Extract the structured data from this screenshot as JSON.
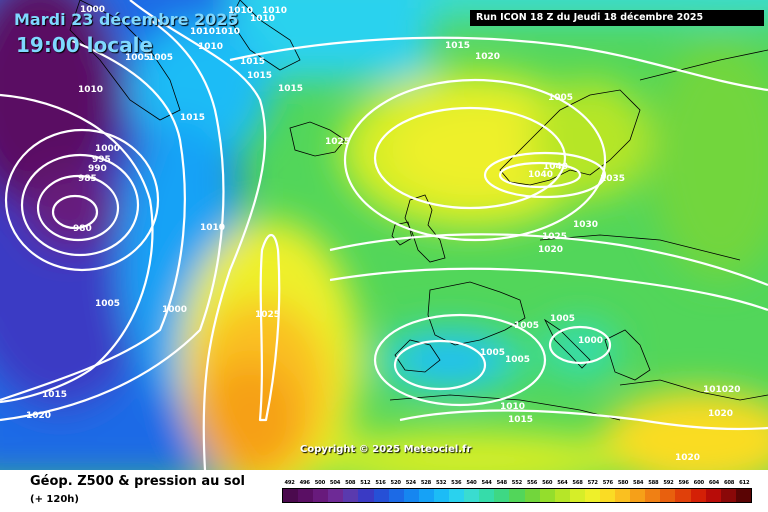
{
  "header": {
    "date": "Mardi 23 décembre 2025",
    "time": "19:00 locale",
    "run": "Run ICON 18 Z du Jeudi 18 décembre 2025"
  },
  "copyright": "Copyright © 2025 Meteociel.fr",
  "legend": {
    "title": "Géop. Z500 & pression au sol",
    "subtitle": "(+ 120h)",
    "ticks": [
      "492",
      "496",
      "500",
      "504",
      "508",
      "512",
      "516",
      "520",
      "524",
      "528",
      "532",
      "536",
      "540",
      "544",
      "548",
      "552",
      "556",
      "560",
      "564",
      "568",
      "572",
      "576",
      "580",
      "584",
      "588",
      "592",
      "596",
      "600",
      "604",
      "608",
      "612"
    ],
    "colors": [
      "#4b0a4e",
      "#5a0f64",
      "#681a7c",
      "#6e2a96",
      "#5a3aae",
      "#3a3ac4",
      "#2650d6",
      "#1c6ae6",
      "#1686f0",
      "#16a2f6",
      "#1cbcf6",
      "#2ad2ee",
      "#3adcd0",
      "#36dcaa",
      "#3ed884",
      "#52d65a",
      "#72d63c",
      "#94de2c",
      "#b6e628",
      "#d6ee28",
      "#eef02a",
      "#fadc24",
      "#fac020",
      "#f6a018",
      "#f08014",
      "#e8600e",
      "#e0400a",
      "#d42006",
      "#b80c08",
      "#8a0808",
      "#5a0404"
    ]
  },
  "pressure_labels": [
    {
      "text": "1000"
    },
    {
      "text": "1010"
    },
    {
      "text": "1010"
    },
    {
      "text": "1010"
    },
    {
      "text": "1010"
    },
    {
      "text": "1010"
    },
    {
      "text": "1010"
    },
    {
      "text": "1005"
    },
    {
      "text": "1015"
    },
    {
      "text": "1015"
    },
    {
      "text": "1015"
    },
    {
      "text": "1015"
    },
    {
      "text": "1020"
    },
    {
      "text": "1005"
    },
    {
      "text": "1010"
    },
    {
      "text": "1015"
    },
    {
      "text": "1025"
    },
    {
      "text": "1000"
    },
    {
      "text": "995"
    },
    {
      "text": "990"
    },
    {
      "text": "985"
    },
    {
      "text": "980"
    },
    {
      "text": "1010"
    },
    {
      "text": "1005"
    },
    {
      "text": "1000"
    },
    {
      "text": "1025"
    },
    {
      "text": "1015"
    },
    {
      "text": "1020"
    },
    {
      "text": "1040"
    },
    {
      "text": "1040"
    },
    {
      "text": "1035"
    },
    {
      "text": "1030"
    },
    {
      "text": "1025"
    },
    {
      "text": "1020"
    },
    {
      "text": "1005"
    },
    {
      "text": "1005"
    },
    {
      "text": "1005"
    },
    {
      "text": "1005"
    },
    {
      "text": "1000"
    },
    {
      "text": "1010"
    },
    {
      "text": "1015"
    },
    {
      "text": "101020"
    },
    {
      "text": "1020"
    },
    {
      "text": "1020"
    },
    {
      "text": "1005"
    }
  ]
}
